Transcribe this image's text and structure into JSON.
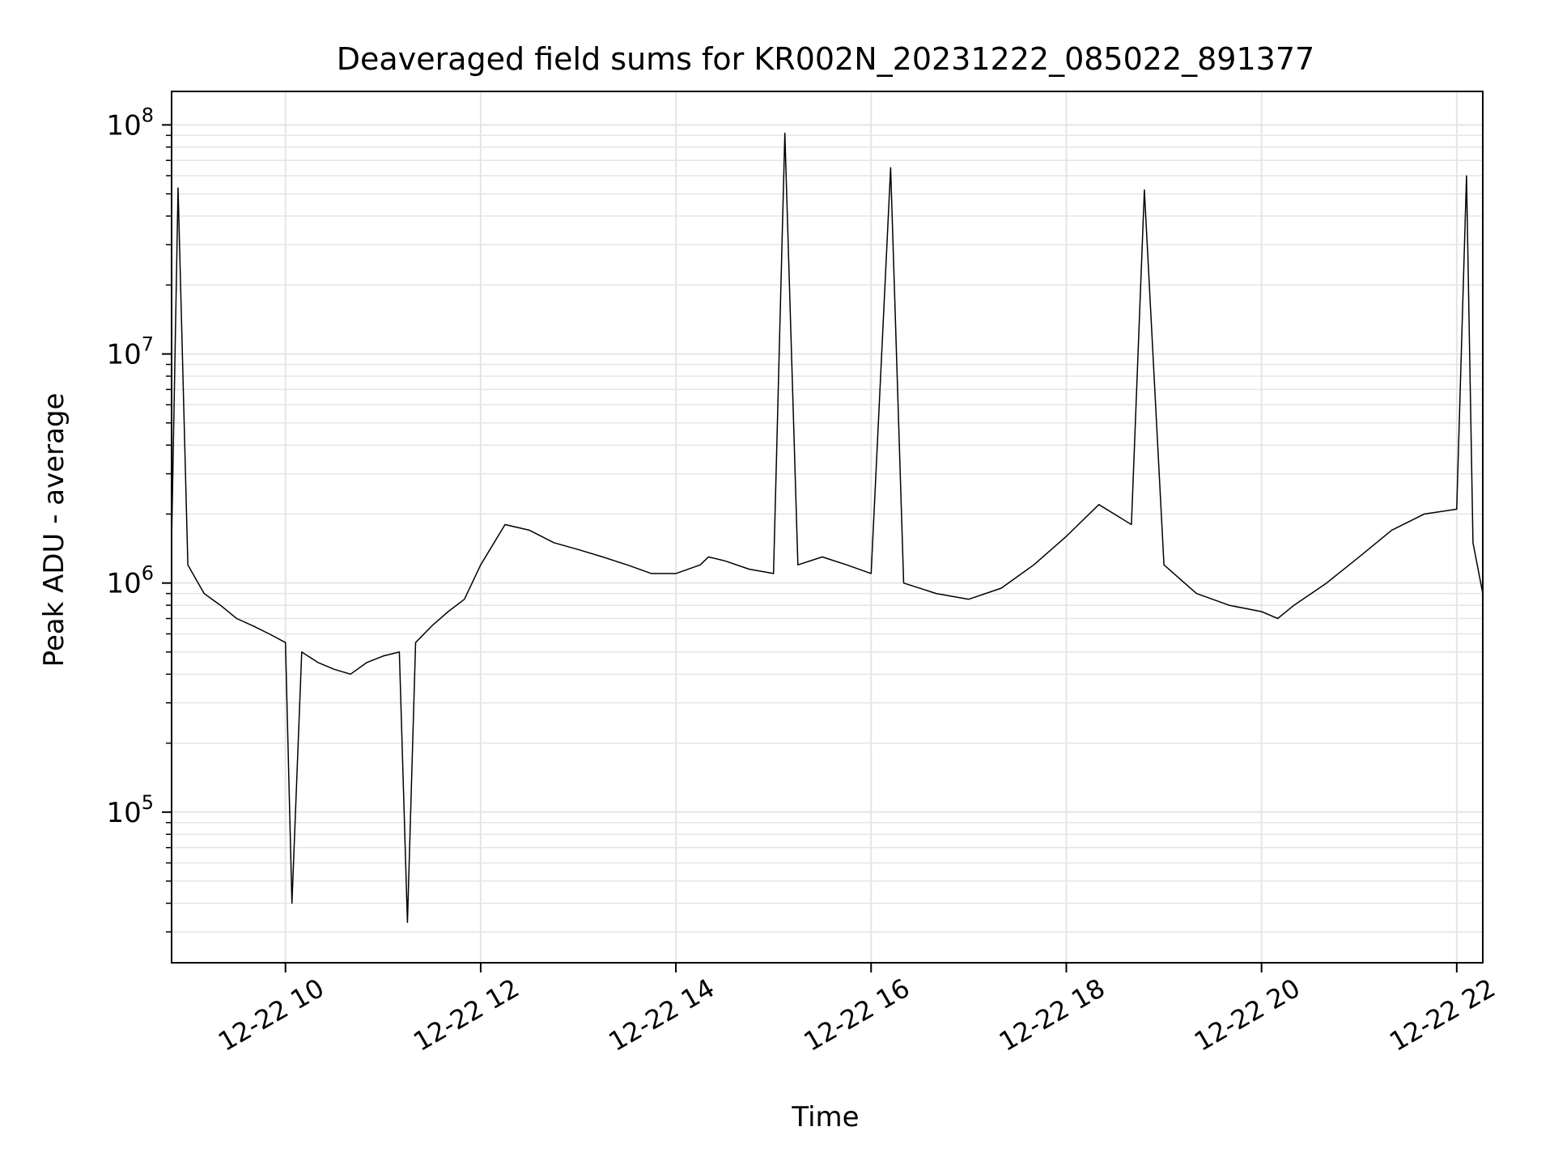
{
  "chart_data": {
    "type": "line",
    "title": "Deaveraged field sums for KR002N_20231222_085022_891377",
    "xlabel": "Time",
    "ylabel": "Peak ADU - average",
    "x_range": [
      "2023-12-22 08:50",
      "2023-12-22 22:16"
    ],
    "xticks": [
      {
        "value": "2023-12-22 10:00",
        "label": "12-22 10"
      },
      {
        "value": "2023-12-22 12:00",
        "label": "12-22 12"
      },
      {
        "value": "2023-12-22 14:00",
        "label": "12-22 14"
      },
      {
        "value": "2023-12-22 16:00",
        "label": "12-22 16"
      },
      {
        "value": "2023-12-22 18:00",
        "label": "12-22 18"
      },
      {
        "value": "2023-12-22 20:00",
        "label": "12-22 20"
      },
      {
        "value": "2023-12-22 22:00",
        "label": "12-22 22"
      }
    ],
    "y_scale": "log",
    "ylim": [
      22000,
      140000000
    ],
    "yticks": [
      {
        "value": 100000,
        "base": "10",
        "exp": "5"
      },
      {
        "value": 1000000,
        "base": "10",
        "exp": "6"
      },
      {
        "value": 10000000,
        "base": "10",
        "exp": "7"
      },
      {
        "value": 100000000,
        "base": "10",
        "exp": "8"
      }
    ],
    "grid": true,
    "legend": "none",
    "line_color": "#000000",
    "grid_color": "#e5e5e5",
    "series": [
      {
        "x": [
          "2023-12-22 08:50",
          "2023-12-22 08:54",
          "2023-12-22 09:00",
          "2023-12-22 09:10",
          "2023-12-22 09:20",
          "2023-12-22 09:30",
          "2023-12-22 09:40",
          "2023-12-22 09:50",
          "2023-12-22 10:00",
          "2023-12-22 10:04",
          "2023-12-22 10:10",
          "2023-12-22 10:20",
          "2023-12-22 10:30",
          "2023-12-22 10:40",
          "2023-12-22 10:50",
          "2023-12-22 11:00",
          "2023-12-22 11:10",
          "2023-12-22 11:15",
          "2023-12-22 11:20",
          "2023-12-22 11:30",
          "2023-12-22 11:40",
          "2023-12-22 11:50",
          "2023-12-22 12:00",
          "2023-12-22 12:15",
          "2023-12-22 12:30",
          "2023-12-22 12:45",
          "2023-12-22 13:00",
          "2023-12-22 13:15",
          "2023-12-22 13:30",
          "2023-12-22 13:45",
          "2023-12-22 14:00",
          "2023-12-22 14:15",
          "2023-12-22 14:20",
          "2023-12-22 14:30",
          "2023-12-22 14:45",
          "2023-12-22 15:00",
          "2023-12-22 15:07",
          "2023-12-22 15:15",
          "2023-12-22 15:30",
          "2023-12-22 15:45",
          "2023-12-22 16:00",
          "2023-12-22 16:12",
          "2023-12-22 16:20",
          "2023-12-22 16:40",
          "2023-12-22 17:00",
          "2023-12-22 17:20",
          "2023-12-22 17:40",
          "2023-12-22 18:00",
          "2023-12-22 18:20",
          "2023-12-22 18:40",
          "2023-12-22 18:48",
          "2023-12-22 19:00",
          "2023-12-22 19:20",
          "2023-12-22 19:40",
          "2023-12-22 20:00",
          "2023-12-22 20:10",
          "2023-12-22 20:20",
          "2023-12-22 20:40",
          "2023-12-22 21:00",
          "2023-12-22 21:20",
          "2023-12-22 21:40",
          "2023-12-22 22:00",
          "2023-12-22 22:06",
          "2023-12-22 22:10",
          "2023-12-22 22:16"
        ],
        "y": [
          1500000,
          53000000,
          1200000,
          900000,
          800000,
          700000,
          650000,
          600000,
          550000,
          40000,
          500000,
          450000,
          420000,
          400000,
          450000,
          480000,
          500000,
          33000,
          550000,
          650000,
          750000,
          850000,
          1200000,
          1800000,
          1700000,
          1500000,
          1400000,
          1300000,
          1200000,
          1100000,
          1100000,
          1200000,
          1300000,
          1250000,
          1150000,
          1100000,
          92000000,
          1200000,
          1300000,
          1200000,
          1100000,
          65000000,
          1000000,
          900000,
          850000,
          950000,
          1200000,
          1600000,
          2200000,
          1800000,
          52000000,
          1200000,
          900000,
          800000,
          750000,
          700000,
          800000,
          1000000,
          1300000,
          1700000,
          2000000,
          2100000,
          60000000,
          1500000,
          900000
        ]
      }
    ]
  }
}
